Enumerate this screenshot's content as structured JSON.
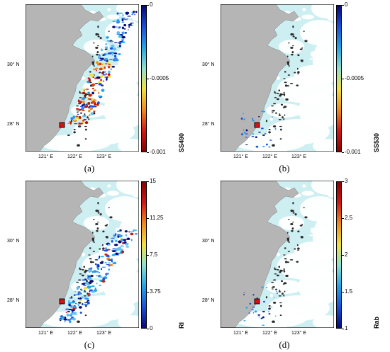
{
  "panels": [
    {
      "id": "a",
      "label": "(a)",
      "colorbar": {
        "title": "SS490",
        "ticks": [
          "0",
          "-0.0005",
          "-0.001"
        ],
        "colors": [
          "#08087a",
          "#1c4fd8",
          "#22a4e8",
          "#8fe0d0",
          "#f0e040",
          "#f08a20",
          "#d01818",
          "#8a0000"
        ]
      },
      "lat_labels": [
        "30° N",
        "28° N"
      ],
      "lon_labels": [
        "121° E",
        "122° E",
        "123° E"
      ],
      "overlay": "high"
    },
    {
      "id": "b",
      "label": "(b)",
      "colorbar": {
        "title": "SS530",
        "ticks": [
          "0",
          "-0.0005",
          "-0.001"
        ],
        "colors": [
          "#08087a",
          "#1c4fd8",
          "#22a4e8",
          "#8fe0d0",
          "#f0e040",
          "#f08a20",
          "#d01818",
          "#8a0000"
        ]
      },
      "lat_labels": [
        "30° N",
        "28° N"
      ],
      "lon_labels": [
        "121° E",
        "122° E",
        "123° E"
      ],
      "overlay": "low"
    },
    {
      "id": "c",
      "label": "(c)",
      "colorbar": {
        "title": "RI",
        "ticks": [
          "15",
          "11.25",
          "7.5",
          "3.75",
          "0"
        ],
        "colors": [
          "#8a0000",
          "#d01818",
          "#f08a20",
          "#f0e040",
          "#8fe0d0",
          "#22a4e8",
          "#1c4fd8",
          "#08087a"
        ]
      },
      "lat_labels": [
        "30° N",
        "28° N"
      ],
      "lon_labels": [
        "121° E",
        "122° E",
        "123° E"
      ],
      "overlay": "blue"
    },
    {
      "id": "d",
      "label": "(d)",
      "colorbar": {
        "title": "Rab",
        "ticks": [
          "3",
          "2.5",
          "2",
          "1.5",
          "1"
        ],
        "colors": [
          "#8a0000",
          "#d01818",
          "#f08a20",
          "#f0e040",
          "#8fe0d0",
          "#22a4e8",
          "#1c4fd8",
          "#08087a"
        ]
      },
      "lat_labels": [
        "30° N",
        "28° N"
      ],
      "lon_labels": [
        "121° E",
        "122° E",
        "123° E"
      ],
      "overlay": "low"
    }
  ],
  "colors": {
    "sea": "#cdeff2",
    "land": "#b5b5b5",
    "cloud": "#ffffff",
    "marker": "#d21414"
  }
}
